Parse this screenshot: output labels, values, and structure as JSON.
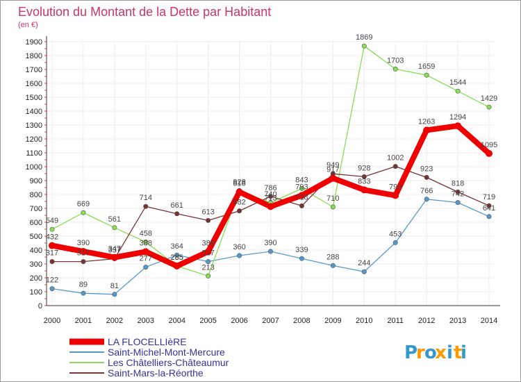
{
  "chart_data": {
    "type": "line",
    "title": "Evolution du Montant de la Dette par Habitant",
    "subtitle": "(en €)",
    "categories": [
      "2000",
      "2001",
      "2002",
      "2003",
      "2004",
      "2005",
      "2006",
      "2007",
      "2008",
      "2009",
      "2010",
      "2011",
      "2012",
      "2013",
      "2014"
    ],
    "ylim": [
      0,
      1900
    ],
    "yticks": [
      0,
      100,
      200,
      300,
      400,
      500,
      600,
      700,
      800,
      900,
      1000,
      1100,
      1200,
      1300,
      1400,
      1500,
      1600,
      1700,
      1800,
      1900
    ],
    "grid": true,
    "legend_position": "bottom-left",
    "series": [
      {
        "name": "LA FLOCELLIèRE",
        "color": "#ee0000",
        "values": [
          432,
          390,
          347,
          388,
          285,
          388,
          818,
          713,
          793,
          917,
          833,
          793,
          1263,
          1294,
          1095
        ]
      },
      {
        "name": "Saint-Michel-Mont-Mercure",
        "color": "#5599cc",
        "values": [
          122,
          89,
          81,
          277,
          364,
          317,
          360,
          390,
          339,
          288,
          244,
          453,
          766,
          742,
          641
        ]
      },
      {
        "name": "Les Châtelliers-Châteaumur",
        "color": "#88dd55",
        "values": [
          549,
          669,
          561,
          458,
          285,
          213,
          828,
          740,
          843,
          710,
          1869,
          1703,
          1659,
          1544,
          1429
        ]
      },
      {
        "name": "Saint-Mars-la-Réorthe",
        "color": "#773333",
        "values": [
          317,
          317,
          337,
          714,
          661,
          613,
          682,
          786,
          718,
          949,
          928,
          1002,
          923,
          818,
          719
        ]
      }
    ]
  },
  "logo": {
    "text": "Proxiti",
    "letter_colors": [
      "#3399cc",
      "#ff9900",
      "#3399cc",
      "#ff9900",
      "#3399cc",
      "#ff9900",
      "#3399cc"
    ]
  }
}
